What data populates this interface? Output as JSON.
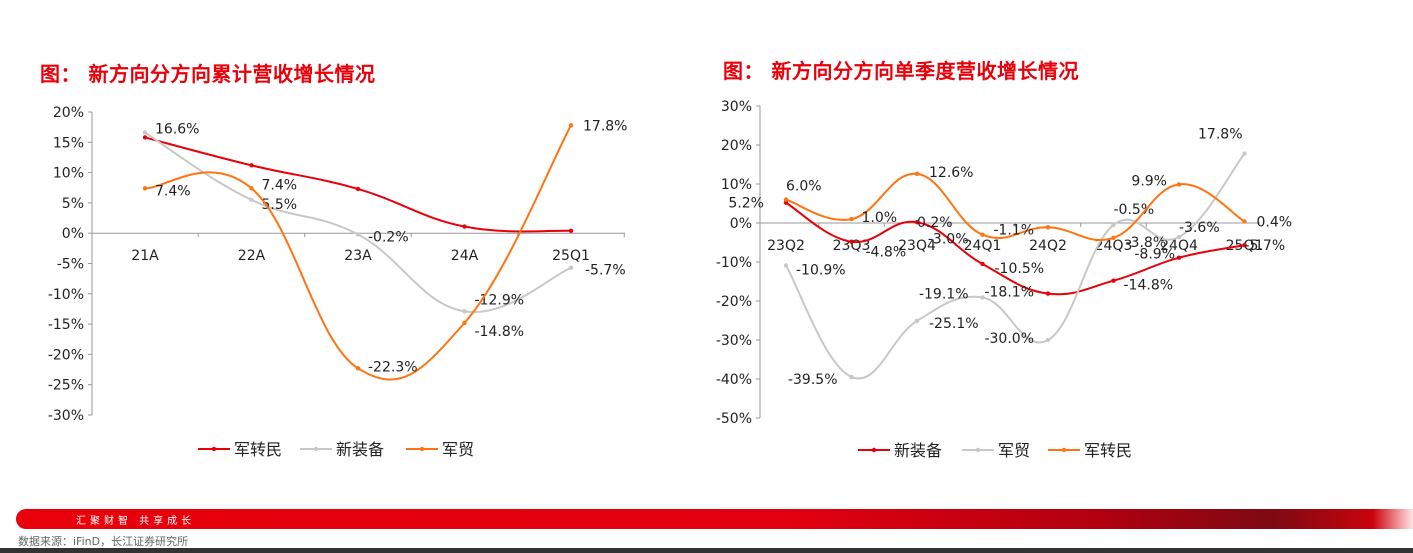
{
  "charts": {
    "left": {
      "title": "图： 新方向分方向累计营收增长情况"
    },
    "right": {
      "title": "图： 新方向分方向单季度营收增长情况"
    }
  },
  "chart_data": [
    {
      "type": "line",
      "title": "图： 新方向分方向累计营收增长情况",
      "categories": [
        "21A",
        "22A",
        "23A",
        "24A",
        "25Q1"
      ],
      "ylim": [
        -30,
        20
      ],
      "yticks": [
        "20%",
        "15%",
        "10%",
        "5%",
        "0%",
        "-5%",
        "-10%",
        "-15%",
        "-20%",
        "-25%",
        "-30%"
      ],
      "legend_position": "bottom",
      "grid": false,
      "series": [
        {
          "name": "军转民",
          "color": "#e8000b",
          "values": [
            15.8,
            11.2,
            7.3,
            1.1,
            0.4
          ],
          "labels": [
            "",
            "",
            "",
            "",
            ""
          ]
        },
        {
          "name": "新装备",
          "color": "#c8c8c8",
          "values": [
            16.6,
            5.5,
            -0.2,
            -12.9,
            -5.7
          ],
          "labels": [
            "16.6%",
            "5.5%",
            "-0.2%",
            "-12.9%",
            "-5.7%"
          ]
        },
        {
          "name": "军贸",
          "color": "#ff7410",
          "values": [
            7.4,
            7.4,
            -22.3,
            -14.8,
            17.8
          ],
          "labels": [
            "7.4%",
            "7.4%",
            "-22.3%",
            "-14.8%",
            "17.8%"
          ]
        }
      ]
    },
    {
      "type": "line",
      "title": "图： 新方向分方向单季度营收增长情况",
      "categories": [
        "23Q2",
        "23Q3",
        "23Q4",
        "24Q1",
        "24Q2",
        "24Q3",
        "24Q4",
        "25Q1"
      ],
      "ylim": [
        -50,
        30
      ],
      "yticks": [
        "30%",
        "20%",
        "10%",
        "0%",
        "-10%",
        "-20%",
        "-30%",
        "-40%",
        "-50%"
      ],
      "legend_position": "bottom",
      "grid": false,
      "series": [
        {
          "name": "新装备",
          "color": "#e8000b",
          "values": [
            5.2,
            -4.8,
            0.2,
            -10.5,
            -18.1,
            -14.8,
            -8.9,
            -5.7
          ],
          "labels": [
            "5.2%",
            "-4.8%",
            "0.2%",
            "-10.5%",
            "-18.1%",
            "-14.8%",
            "-8.9%",
            "-5.7%"
          ]
        },
        {
          "name": "军贸",
          "color": "#c8c8c8",
          "values": [
            -10.9,
            -39.5,
            -25.1,
            -19.1,
            -30.0,
            -0.5,
            -3.6,
            17.8
          ],
          "labels": [
            "-10.9%",
            "-39.5%",
            "-25.1%",
            "-19.1%",
            "-30.0%",
            "-0.5%",
            "-3.6%",
            "17.8%"
          ]
        },
        {
          "name": "军转民",
          "color": "#ff7410",
          "values": [
            6.0,
            1.0,
            12.6,
            -3.0,
            -1.1,
            -3.8,
            9.9,
            0.4
          ],
          "labels": [
            "6.0%",
            "1.0%",
            "12.6%",
            "-3.0%",
            "-1.1%",
            "-3.8%",
            "9.9%",
            "0.4%"
          ]
        }
      ]
    }
  ],
  "footer": {
    "slogan": "汇聚财智    共享成长",
    "source": "数据来源：iFinD，长江证券研究所"
  }
}
